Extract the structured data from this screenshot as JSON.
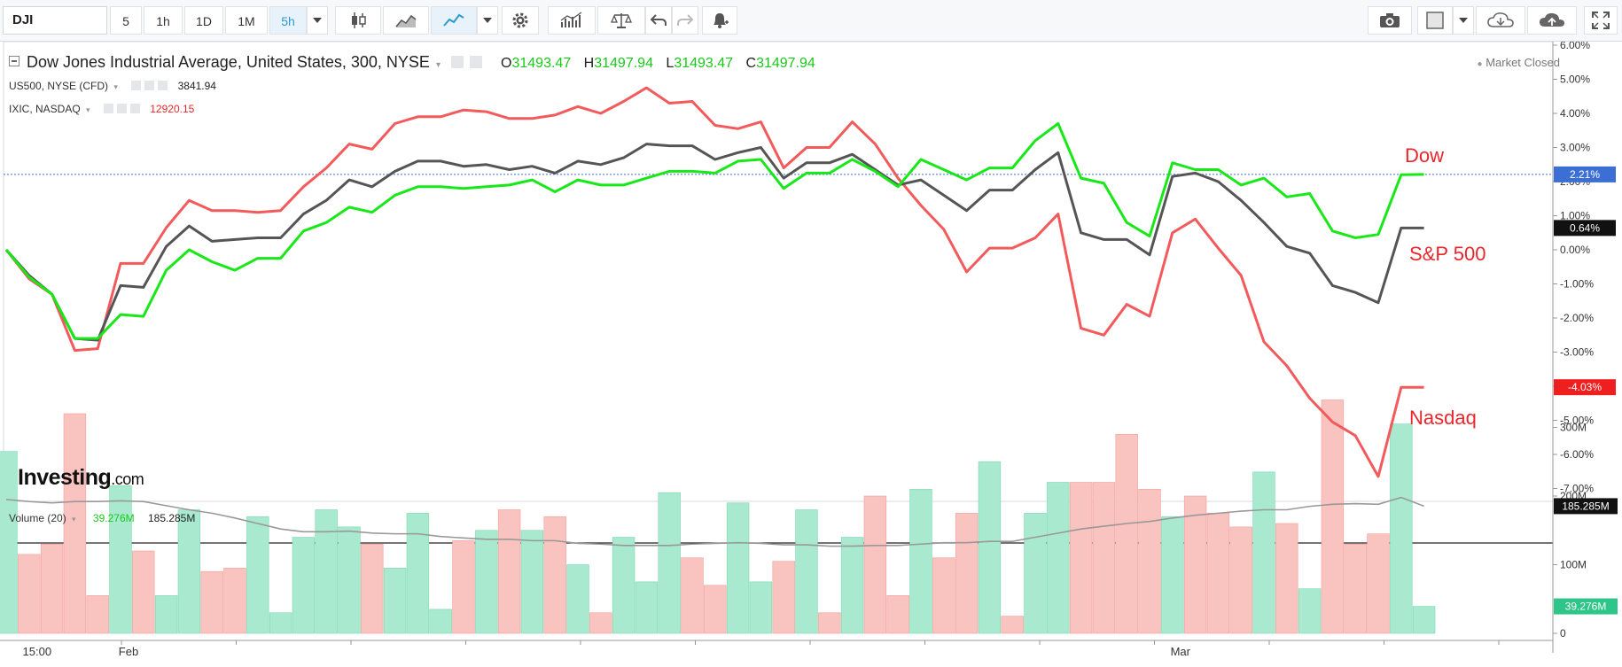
{
  "toolbar": {
    "symbol": "DJI",
    "intervals": [
      "5",
      "1h",
      "1D",
      "1M",
      "5h"
    ],
    "active_interval": "5h"
  },
  "header": {
    "title": "Dow Jones Industrial Average, United States, 300, NYSE",
    "ohlc": {
      "o_label": "O",
      "o": "31493.47",
      "h_label": "H",
      "h": "31497.94",
      "l_label": "L",
      "l": "31493.47",
      "c_label": "C",
      "c": "31497.94"
    },
    "market_status": "Market Closed",
    "compare": [
      {
        "label": "US500, NYSE (CFD)",
        "value": "3841.94",
        "color": "#222222"
      },
      {
        "label": "IXIC, NASDAQ",
        "value": "12920.15",
        "color": "#e8262b"
      }
    ]
  },
  "logo": {
    "main": "Investing",
    "suffix": ".com"
  },
  "colors": {
    "dow": "#18e818",
    "sp500": "#555555",
    "nasdaq": "#f25a5c",
    "vol_up": "#a8e9cf",
    "vol_down": "#f9c3c0",
    "vol_ma": "#999999",
    "last_price_line": "#3b6fd4"
  },
  "annotations": {
    "dow": "Dow",
    "sp500": "S&P 500",
    "nasdaq": "Nasdaq"
  },
  "chart_data": [
    {
      "type": "line",
      "y_unit": "% change",
      "ylim": [
        -7.3,
        6.0
      ],
      "yticks": [
        "6.00%",
        "5.00%",
        "4.00%",
        "3.00%",
        "2.00%",
        "1.00%",
        "0.00%",
        "-1.00%",
        "-2.00%",
        "-3.00%",
        "-4.00%",
        "-5.00%",
        "-6.00%",
        "-7.00%"
      ],
      "ytick_values": [
        6,
        5,
        4,
        3,
        2,
        1,
        0,
        -1,
        -2,
        -3,
        -4,
        -5,
        -6,
        -7
      ],
      "x_labels": [
        {
          "index": 1,
          "label": "15:00"
        },
        {
          "index": 5,
          "label": "Feb"
        },
        {
          "index": 51,
          "label": "Mar"
        }
      ],
      "x_count": 63,
      "series": [
        {
          "name": "Dow",
          "key": "dow",
          "last_label": "2.21%",
          "values": [
            0,
            -0.8,
            -1.3,
            -2.6,
            -2.6,
            -1.9,
            -1.95,
            -0.6,
            0,
            -0.35,
            -0.6,
            -0.25,
            -0.25,
            0.55,
            0.8,
            1.25,
            1.1,
            1.6,
            1.85,
            1.85,
            1.8,
            1.85,
            1.9,
            2.05,
            1.7,
            2.05,
            1.9,
            1.9,
            2.1,
            2.3,
            2.3,
            2.25,
            2.6,
            2.65,
            1.8,
            2.25,
            2.25,
            2.65,
            2.3,
            1.85,
            2.65,
            2.35,
            2.05,
            2.4,
            2.4,
            3.2,
            3.7,
            2.1,
            1.95,
            0.8,
            0.4,
            2.55,
            2.35,
            2.35,
            1.9,
            2.1,
            1.55,
            1.65,
            0.55,
            0.35,
            0.45,
            2.2,
            2.21
          ]
        },
        {
          "name": "S&P 500",
          "key": "sp500",
          "last_label": "0.64%",
          "values": [
            0,
            -0.75,
            -1.3,
            -2.6,
            -2.65,
            -1.05,
            -1.1,
            0.1,
            0.7,
            0.25,
            0.3,
            0.35,
            0.35,
            1.05,
            1.45,
            2.05,
            1.85,
            2.3,
            2.6,
            2.6,
            2.45,
            2.5,
            2.35,
            2.45,
            2.25,
            2.6,
            2.5,
            2.7,
            3.1,
            3.05,
            3.05,
            2.65,
            2.85,
            3.0,
            2.1,
            2.55,
            2.55,
            2.8,
            2.35,
            1.9,
            2.05,
            1.6,
            1.15,
            1.75,
            1.75,
            2.35,
            2.85,
            0.5,
            0.3,
            0.3,
            -0.15,
            2.15,
            2.25,
            2.0,
            1.45,
            0.8,
            0.1,
            -0.1,
            -1.05,
            -1.25,
            -1.55,
            0.64,
            0.64
          ]
        },
        {
          "name": "Nasdaq",
          "key": "nasdaq",
          "last_label": "-4.03%",
          "values": [
            0,
            -0.85,
            -1.3,
            -2.95,
            -2.9,
            -0.4,
            -0.4,
            0.65,
            1.45,
            1.15,
            1.15,
            1.1,
            1.15,
            1.85,
            2.4,
            3.1,
            2.95,
            3.7,
            3.9,
            3.9,
            4.1,
            4.05,
            3.85,
            3.85,
            3.95,
            4.2,
            4.0,
            4.35,
            4.75,
            4.3,
            4.35,
            3.65,
            3.55,
            3.75,
            2.4,
            3.0,
            3.0,
            3.75,
            3.1,
            2.1,
            1.3,
            0.6,
            -0.65,
            0.05,
            0.05,
            0.35,
            1.05,
            -2.3,
            -2.5,
            -1.6,
            -1.95,
            0.5,
            0.9,
            0.05,
            -0.75,
            -2.7,
            -3.4,
            -4.35,
            -5.05,
            -5.45,
            -6.65,
            -4.03,
            -4.03
          ]
        }
      ]
    },
    {
      "type": "bar",
      "title": "Volume (20)",
      "legend_values": [
        "39.276M",
        "185.285M"
      ],
      "yticks": [
        "300M",
        "200M",
        "100M",
        "0"
      ],
      "ytick_values": [
        300,
        200,
        100,
        0
      ],
      "ylim": [
        0,
        340
      ],
      "last_labels": {
        "ma": "185.285M",
        "volume": "39.276M"
      },
      "values": [
        265,
        115,
        130,
        320,
        55,
        215,
        120,
        55,
        180,
        90,
        95,
        170,
        30,
        140,
        180,
        155,
        130,
        95,
        175,
        35,
        135,
        150,
        180,
        150,
        170,
        100,
        30,
        140,
        75,
        205,
        110,
        70,
        190,
        75,
        105,
        180,
        30,
        140,
        200,
        55,
        210,
        110,
        175,
        250,
        25,
        175,
        220,
        220,
        220,
        290,
        210,
        170,
        200,
        175,
        155,
        235,
        160,
        65,
        340,
        130,
        145,
        305,
        39.276
      ],
      "up": [
        1,
        0,
        0,
        0,
        0,
        1,
        0,
        1,
        1,
        0,
        0,
        1,
        1,
        1,
        1,
        1,
        0,
        1,
        1,
        1,
        0,
        1,
        0,
        1,
        0,
        1,
        0,
        1,
        1,
        1,
        0,
        0,
        1,
        1,
        0,
        1,
        0,
        1,
        0,
        0,
        1,
        0,
        0,
        1,
        0,
        1,
        1,
        0,
        0,
        0,
        0,
        1,
        0,
        0,
        0,
        1,
        0,
        1,
        0,
        0,
        0,
        1,
        1
      ],
      "ma": [
        195,
        192,
        190,
        192,
        192,
        193,
        192,
        186,
        180,
        175,
        168,
        160,
        152,
        148,
        148,
        149,
        146,
        145,
        145,
        141,
        139,
        137,
        137,
        135,
        135,
        131,
        130,
        128,
        128,
        128,
        130,
        131,
        132,
        131,
        129,
        129,
        127,
        127,
        128,
        128,
        130,
        132,
        132,
        134,
        134,
        140,
        146,
        152,
        156,
        160,
        163,
        168,
        172,
        175,
        178,
        180,
        180,
        185,
        188,
        189,
        188,
        198,
        185.285
      ]
    }
  ]
}
